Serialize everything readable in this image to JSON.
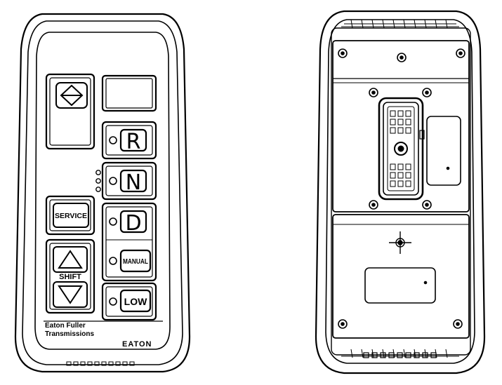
{
  "front": {
    "gears": {
      "r": "R",
      "n": "N",
      "d": "D",
      "manual": "MANUAL",
      "low": "LOW"
    },
    "service_label": "SERVICE",
    "shift_label": "SHIFT",
    "brand_line1": "Eaton  Fuller",
    "brand_line2": "Transmissions",
    "logo": "EATON"
  }
}
